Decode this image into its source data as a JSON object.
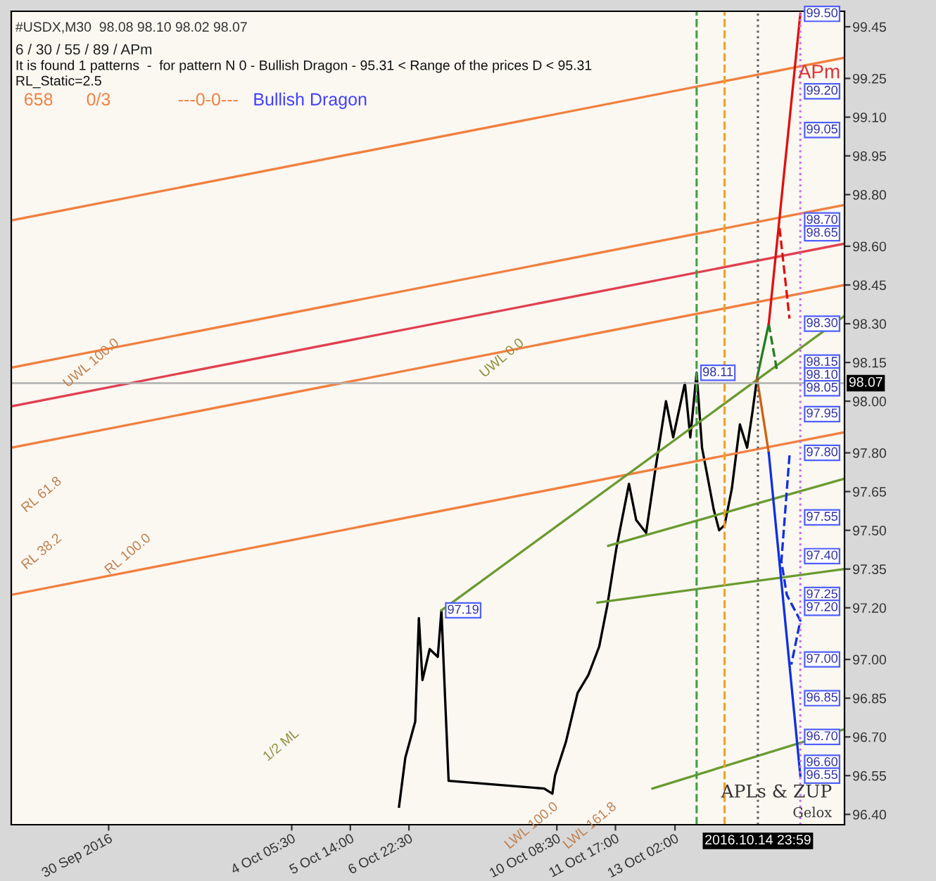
{
  "chart_data": {
    "type": "line",
    "title": "#USDX,M30  98.08 98.10 98.02 98.07",
    "subtitle": "6 / 30 / 55 / 89 / APm",
    "xlim": [
      "2016-09-27T18:00",
      "2016-10-17T00:00"
    ],
    "ylim": [
      96.36,
      99.51
    ],
    "xticks": [
      {
        "value": "2016-09-30",
        "label": "30 Sep 2016"
      },
      {
        "value": "2016-10-04T05:30",
        "label": "4 Oct 05:30"
      },
      {
        "value": "2016-10-05T14:00",
        "label": "5 Oct 14:00"
      },
      {
        "value": "2016-10-06T22:30",
        "label": "6 Oct 22:30"
      },
      {
        "value": "2016-10-10T08:30",
        "label": "10 Oct 08:30"
      },
      {
        "value": "2016-10-11T17:00",
        "label": "11 Oct 17:00"
      },
      {
        "value": "2016-10-13T02:00",
        "label": "13 Oct 02:00"
      }
    ],
    "yticks": [
      99.45,
      99.25,
      {
        "value": 99.1,
        "label": "99.10"
      },
      98.95,
      {
        "value": 98.8,
        "label": "98.80"
      },
      {
        "value": 98.6,
        "label": "98.60"
      },
      98.45,
      {
        "value": 98.3,
        "label": "98.30"
      },
      98.15,
      {
        "value": 98.0,
        "label": "98.00"
      },
      {
        "value": 97.8,
        "label": "97.80"
      },
      97.65,
      {
        "value": 97.5,
        "label": "97.50"
      },
      97.35,
      {
        "value": 97.2,
        "label": "97.20"
      },
      {
        "value": 97.0,
        "label": "97.00"
      },
      96.85,
      {
        "value": 96.7,
        "label": "96.70"
      },
      96.55,
      {
        "value": 96.4,
        "label": "96.40"
      }
    ],
    "grid": false,
    "series": [
      {
        "color": "#000000",
        "x": [
          "2016-10-06T17:00",
          "2016-10-06T20:30",
          "2016-10-07T02:00",
          "2016-10-07T04:00",
          "2016-10-07T06:00",
          "2016-10-07T10:00",
          "2016-10-07T14:30",
          "2016-10-07T16:30",
          "2016-10-07T18:00",
          "2016-10-07T20:30",
          "2016-10-10T01:30",
          "2016-10-10T06:00",
          "2016-10-10T07:30",
          "2016-10-10T13:30",
          "2016-10-10T20:00",
          "2016-10-11T02:00",
          "2016-10-11T08:00",
          "2016-10-11T12:30",
          "2016-10-11T17:30",
          "2016-10-12T00:30",
          "2016-10-12T04:30",
          "2016-10-12T10:00",
          "2016-10-12T15:00",
          "2016-10-12T21:00",
          "2016-10-13T01:00",
          "2016-10-13T07:30",
          "2016-10-13T10:30",
          "2016-10-13T14:00",
          "2016-10-13T17:00",
          "2016-10-13T23:30",
          "2016-10-14T02:30",
          "2016-10-14T05:30",
          "2016-10-14T09:30",
          "2016-10-14T14:00",
          "2016-10-14T18:00",
          "2016-10-14T21:00",
          "2016-10-14T23:30"
        ],
        "values": [
          96.43,
          96.62,
          96.76,
          97.16,
          96.92,
          97.04,
          97.01,
          97.19,
          96.94,
          96.53,
          96.5,
          96.48,
          96.55,
          96.68,
          96.87,
          96.94,
          97.05,
          97.21,
          97.43,
          97.68,
          97.54,
          97.49,
          97.73,
          98.0,
          97.86,
          98.07,
          97.86,
          98.11,
          97.82,
          97.58,
          97.5,
          97.52,
          97.66,
          97.91,
          97.82,
          97.96,
          98.09
        ]
      },
      {
        "color": "#f08040",
        "x": [
          "2016-09-27T18:00",
          "2016-10-17T00:00"
        ],
        "values": [
          98.7,
          99.33
        ]
      },
      {
        "color": "#f08040",
        "x": [
          "2016-09-27T18:00",
          "2016-10-17T00:00"
        ],
        "values": [
          98.13,
          98.76
        ]
      },
      {
        "color": "#e04050",
        "x": [
          "2016-09-27T18:00",
          "2016-10-17T00:00"
        ],
        "values": [
          97.98,
          98.61
        ]
      },
      {
        "color": "#f08040",
        "x": [
          "2016-09-27T18:00",
          "2016-10-17T00:00"
        ],
        "values": [
          97.82,
          98.45
        ]
      },
      {
        "color": "#f08040",
        "x": [
          "2016-09-27T18:00",
          "2016-10-17T00:00"
        ],
        "values": [
          97.25,
          97.88
        ]
      },
      {
        "color": "#6a9a30",
        "x": [
          "2016-10-07T16:30",
          "2016-10-17T00:00"
        ],
        "values": [
          97.19,
          98.33
        ]
      },
      {
        "color": "#6a9a30",
        "x": [
          "2016-10-11T13:00",
          "2016-10-17T00:00"
        ],
        "values": [
          97.44,
          97.7
        ]
      },
      {
        "color": "#6a9a30",
        "x": [
          "2016-10-11T07:00",
          "2016-10-17T00:00"
        ],
        "values": [
          97.22,
          97.35
        ]
      },
      {
        "color": "#6a9a30",
        "x": [
          "2016-10-12T13:30",
          "2016-10-17T00:00"
        ],
        "values": [
          96.5,
          96.73
        ]
      },
      {
        "color": "#208020",
        "x": [
          "2016-10-14T23:30",
          "2016-10-15T06:00"
        ],
        "values": [
          98.09,
          98.3
        ]
      },
      {
        "color": "#208020",
        "x": [
          "2016-10-15T06:00",
          "2016-10-15T10:30"
        ],
        "values": [
          98.3,
          98.12
        ],
        "line_style": "dashed"
      },
      {
        "color": "#e01010",
        "x": [
          "2016-10-15T06:00",
          "2016-10-15T23:30"
        ],
        "values": [
          98.3,
          99.5
        ]
      },
      {
        "color": "#e01010",
        "x": [
          "2016-10-15T12:00",
          "2016-10-15T17:30"
        ],
        "values": [
          98.67,
          98.32
        ],
        "line_style": "dashed"
      },
      {
        "color": "#d06010",
        "x": [
          "2016-10-14T23:30",
          "2016-10-15T06:00"
        ],
        "values": [
          98.09,
          97.8
        ]
      },
      {
        "color": "#1030e0",
        "x": [
          "2016-10-15T06:00",
          "2016-10-15T23:30"
        ],
        "values": [
          97.8,
          96.55
        ]
      },
      {
        "color": "#1030e0",
        "x": [
          "2016-10-15T17:30",
          "2016-10-15T13:00",
          "2016-10-15T16:00",
          "2016-10-15T23:30",
          "2016-10-15T18:30"
        ],
        "values": [
          97.79,
          97.38,
          97.25,
          97.15,
          96.98
        ],
        "line_style": "dashed"
      }
    ],
    "ref_lines": [
      {
        "axis": "x",
        "value": "2016-10-14T23:59",
        "label": "2016.10.14 23:59",
        "color": "#606060",
        "line_style": "dotted"
      },
      {
        "axis": "x",
        "value": "2016-10-15T23:30",
        "color": "#c070f0",
        "line_style": "dotted"
      },
      {
        "axis": "x",
        "value": "2016-10-13T14:00",
        "color": "#40a040",
        "line_style": "dashed"
      },
      {
        "axis": "x",
        "value": "2016-10-14T05:30",
        "color": "#f0a020",
        "line_style": "dashed"
      },
      {
        "axis": "y",
        "value": 98.07,
        "label": "98.07",
        "color": "#b0b0b0",
        "line_style": "solid"
      }
    ],
    "annotations": [
      "It is found 1 patterns  -  for pattern N 0 - Bullish Dragon - 95.31 < Range of the prices D < 95.31",
      "RL_Static=2.5",
      "658",
      "0/3",
      "---0-0---",
      "Bullish Dragon",
      "APm",
      "APLs & ZUP",
      "Gelox",
      "1/2 ML",
      "UWL 0.0",
      "UWL 100.0",
      "RL 61.8",
      "RL 38.2",
      "RL 100.0",
      "LWL 100.0",
      "LWL 161.8",
      {
        "text": "99.50",
        "x": "2016-10-15T23:30",
        "y": 99.5
      },
      {
        "text": "99.20",
        "x": "2016-10-15T23:30",
        "y": 99.2
      },
      {
        "text": "99.05",
        "x": "2016-10-15T23:30",
        "y": 99.05
      },
      {
        "text": "98.70",
        "x": "2016-10-15T23:30",
        "y": 98.7
      },
      {
        "text": "98.65",
        "x": "2016-10-15T23:30",
        "y": 98.65
      },
      {
        "text": "98.30",
        "x": "2016-10-15T23:30",
        "y": 98.3
      },
      {
        "text": "98.15",
        "x": "2016-10-15T23:30",
        "y": 98.15
      },
      {
        "text": "98.10",
        "x": "2016-10-15T23:30",
        "y": 98.1
      },
      {
        "text": "98.05",
        "x": "2016-10-15T23:30",
        "y": 98.05
      },
      {
        "text": "97.95",
        "x": "2016-10-15T23:30",
        "y": 97.95
      },
      {
        "text": "97.80",
        "x": "2016-10-15T23:30",
        "y": 97.8
      },
      {
        "text": "97.55",
        "x": "2016-10-15T23:30",
        "y": 97.55
      },
      {
        "text": "97.40",
        "x": "2016-10-15T23:30",
        "y": 97.4
      },
      {
        "text": "97.25",
        "x": "2016-10-15T23:30",
        "y": 97.25
      },
      {
        "text": "97.20",
        "x": "2016-10-15T23:30",
        "y": 97.2
      },
      {
        "text": "97.00",
        "x": "2016-10-15T23:30",
        "y": 97.0
      },
      {
        "text": "96.85",
        "x": "2016-10-15T23:30",
        "y": 96.85
      },
      {
        "text": "96.70",
        "x": "2016-10-15T23:30",
        "y": 96.7
      },
      {
        "text": "96.60",
        "x": "2016-10-15T23:30",
        "y": 96.6
      },
      {
        "text": "96.55",
        "x": "2016-10-15T23:30",
        "y": 96.55
      },
      {
        "text": "98.11",
        "x": "2016-10-13T14:00",
        "y": 98.11
      },
      {
        "text": "97.19",
        "x": "2016-10-07T16:30",
        "y": 97.19
      }
    ]
  }
}
